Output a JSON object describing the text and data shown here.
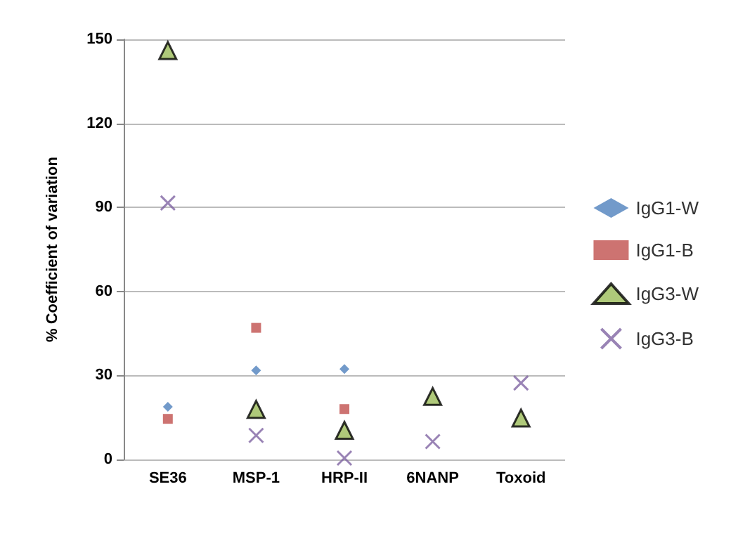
{
  "chart_data": {
    "type": "scatter",
    "ylabel": "% Coefficient of variation",
    "categories": [
      "SE36",
      "MSP-1",
      "HRP-II",
      "6NANP",
      "Toxoid"
    ],
    "series": [
      {
        "name": "IgG1-W",
        "color": "#4f81bd",
        "marker": "diamond",
        "values": [
          18.8,
          31.8,
          32.3,
          null,
          null
        ]
      },
      {
        "name": "IgG1-B",
        "color": "#c0504d",
        "marker": "square",
        "values": [
          14.5,
          47,
          18,
          null,
          null
        ]
      },
      {
        "name": "IgG3-W",
        "color": "#9bbb59",
        "marker": "triangle",
        "values": [
          146,
          17.9,
          10.4,
          22.5,
          14.8
        ]
      },
      {
        "name": "IgG3-B",
        "color": "#8064a2",
        "marker": "cross",
        "values": [
          91.6,
          8.6,
          0.5,
          6.4,
          27.3
        ]
      }
    ],
    "ylim": [
      0,
      150
    ],
    "yticks": [
      0,
      30,
      60,
      90,
      120,
      150
    ],
    "grid": "y",
    "legend": "right"
  }
}
